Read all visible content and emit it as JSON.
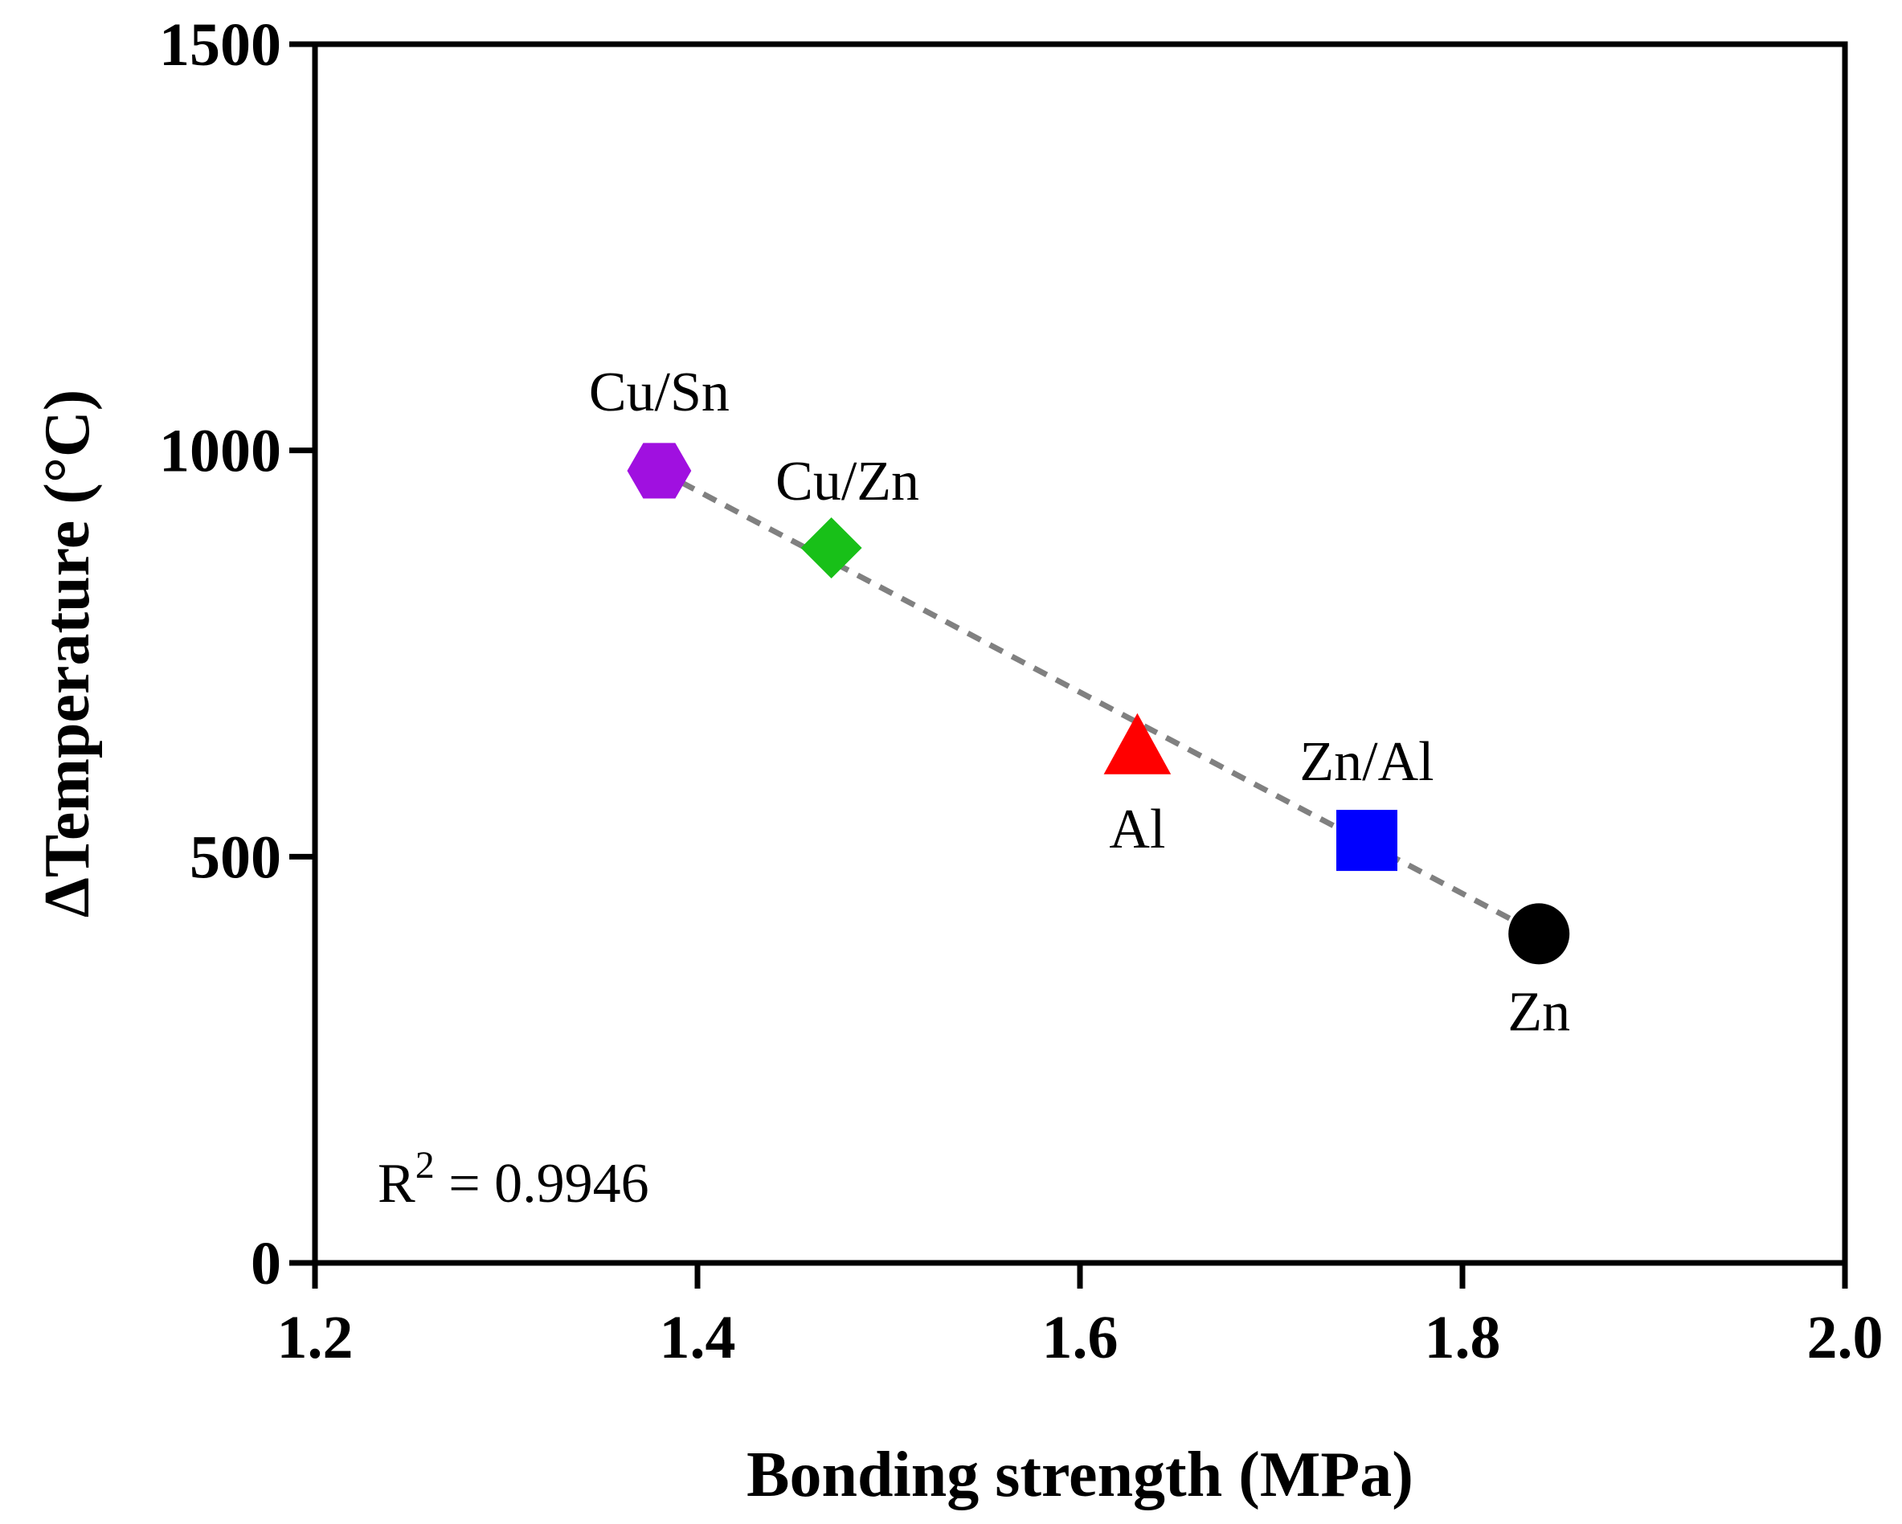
{
  "chart_data": {
    "type": "scatter",
    "title": "",
    "xlabel": "Bonding strength (MPa)",
    "ylabel": "ΔTemperature (°C)",
    "xlim": [
      1.2,
      2.0
    ],
    "ylim": [
      0,
      1500
    ],
    "xticks": [
      "1.2",
      "1.4",
      "1.6",
      "1.8",
      "2.0"
    ],
    "yticks": [
      "0",
      "500",
      "1000",
      "1500"
    ],
    "grid": false,
    "legend": "none",
    "points": [
      {
        "label": "Cu/Sn",
        "x": 1.38,
        "y": 975,
        "marker": "hexagon",
        "color": "#a010e0",
        "label_pos": "above"
      },
      {
        "label": "Cu/Zn",
        "x": 1.47,
        "y": 880,
        "marker": "diamond",
        "color": "#18c018",
        "label_pos": "above-right"
      },
      {
        "label": "Al",
        "x": 1.63,
        "y": 630,
        "marker": "triangle",
        "color": "#ff0000",
        "label_pos": "below"
      },
      {
        "label": "Zn/Al",
        "x": 1.75,
        "y": 520,
        "marker": "square",
        "color": "#0000ff",
        "label_pos": "above"
      },
      {
        "label": "Zn",
        "x": 1.84,
        "y": 405,
        "marker": "circle",
        "color": "#000000",
        "label_pos": "below"
      }
    ],
    "trendline": {
      "style": "dashed",
      "color": "#808080",
      "from": [
        1.38,
        975
      ],
      "to": [
        1.84,
        405
      ]
    },
    "annotation": {
      "r2_prefix": "R",
      "r2_exponent": "2",
      "r2_value": " = 0.9946"
    }
  }
}
